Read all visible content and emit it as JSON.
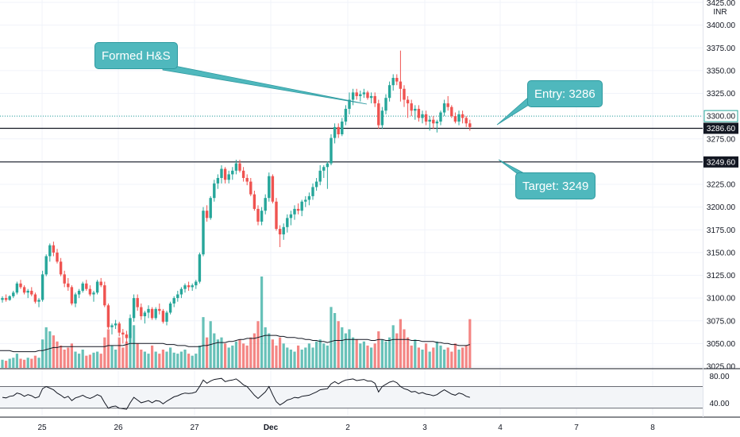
{
  "currency_label": "INR",
  "annotations": [
    {
      "text": "Formed H&S"
    },
    {
      "text": "Entry: 3286"
    },
    {
      "text": "Target: 3249"
    }
  ],
  "colors": {
    "up": "#26a69a",
    "down": "#ef5350",
    "callout": "#4fb8bd",
    "grid": "#f0f3fa"
  },
  "chart_data": [
    {
      "type": "candlestick",
      "y_axis_ticks": [
        3025,
        3050,
        3075,
        3100,
        3125,
        3150,
        3175,
        3200,
        3225,
        3250,
        3275,
        3300,
        3325,
        3350,
        3375,
        3400,
        3425
      ],
      "ylim": [
        3025,
        3425
      ],
      "x_axis_ticks": [
        "25",
        "26",
        "27",
        "Dec",
        "2",
        "3",
        "4",
        "7",
        "8"
      ],
      "price_levels": [
        {
          "value": 3286.6,
          "label": "3286.60"
        },
        {
          "value": 3249.6,
          "label": "3249.60"
        }
      ],
      "current_price": {
        "value": 3300.0,
        "label": "3300.00"
      },
      "ohlc": [
        [
          3098,
          3102,
          3095,
          3100
        ],
        [
          3100,
          3104,
          3096,
          3098
        ],
        [
          3098,
          3103,
          3097,
          3102
        ],
        [
          3102,
          3108,
          3100,
          3106
        ],
        [
          3106,
          3118,
          3104,
          3116
        ],
        [
          3116,
          3120,
          3110,
          3112
        ],
        [
          3112,
          3114,
          3104,
          3106
        ],
        [
          3106,
          3110,
          3100,
          3108
        ],
        [
          3108,
          3112,
          3102,
          3104
        ],
        [
          3104,
          3106,
          3094,
          3096
        ],
        [
          3096,
          3100,
          3090,
          3098
        ],
        [
          3098,
          3130,
          3096,
          3126
        ],
        [
          3126,
          3148,
          3124,
          3146
        ],
        [
          3146,
          3160,
          3140,
          3158
        ],
        [
          3158,
          3162,
          3146,
          3150
        ],
        [
          3150,
          3154,
          3138,
          3140
        ],
        [
          3140,
          3144,
          3124,
          3126
        ],
        [
          3126,
          3130,
          3112,
          3116
        ],
        [
          3116,
          3122,
          3108,
          3112
        ],
        [
          3112,
          3114,
          3092,
          3094
        ],
        [
          3094,
          3106,
          3090,
          3104
        ],
        [
          3104,
          3110,
          3100,
          3108
        ],
        [
          3108,
          3118,
          3106,
          3116
        ],
        [
          3116,
          3120,
          3108,
          3110
        ],
        [
          3110,
          3114,
          3102,
          3104
        ],
        [
          3104,
          3108,
          3096,
          3106
        ],
        [
          3106,
          3120,
          3104,
          3118
        ],
        [
          3118,
          3122,
          3112,
          3114
        ],
        [
          3114,
          3118,
          3090,
          3092
        ],
        [
          3092,
          3094,
          3066,
          3068
        ],
        [
          3068,
          3072,
          3060,
          3070
        ],
        [
          3070,
          3076,
          3066,
          3072
        ],
        [
          3072,
          3074,
          3058,
          3062
        ],
        [
          3062,
          3066,
          3050,
          3060
        ],
        [
          3060,
          3064,
          3050,
          3056
        ],
        [
          3056,
          3082,
          3050,
          3078
        ],
        [
          3078,
          3104,
          3074,
          3100
        ],
        [
          3100,
          3104,
          3086,
          3090
        ],
        [
          3090,
          3094,
          3076,
          3080
        ],
        [
          3080,
          3086,
          3072,
          3084
        ],
        [
          3084,
          3092,
          3078,
          3088
        ],
        [
          3088,
          3090,
          3076,
          3078
        ],
        [
          3078,
          3090,
          3076,
          3088
        ],
        [
          3088,
          3094,
          3082,
          3086
        ],
        [
          3086,
          3088,
          3072,
          3074
        ],
        [
          3074,
          3086,
          3070,
          3084
        ],
        [
          3084,
          3096,
          3082,
          3094
        ],
        [
          3094,
          3102,
          3090,
          3100
        ],
        [
          3100,
          3108,
          3096,
          3104
        ],
        [
          3104,
          3112,
          3100,
          3110
        ],
        [
          3110,
          3116,
          3106,
          3114
        ],
        [
          3114,
          3118,
          3108,
          3112
        ],
        [
          3112,
          3116,
          3108,
          3114
        ],
        [
          3114,
          3120,
          3110,
          3118
        ],
        [
          3118,
          3150,
          3116,
          3148
        ],
        [
          3148,
          3200,
          3146,
          3196
        ],
        [
          3196,
          3202,
          3184,
          3188
        ],
        [
          3188,
          3212,
          3186,
          3210
        ],
        [
          3210,
          3230,
          3206,
          3226
        ],
        [
          3226,
          3236,
          3220,
          3232
        ],
        [
          3232,
          3246,
          3226,
          3242
        ],
        [
          3242,
          3244,
          3226,
          3230
        ],
        [
          3230,
          3240,
          3226,
          3236
        ],
        [
          3236,
          3244,
          3230,
          3240
        ],
        [
          3240,
          3252,
          3236,
          3248
        ],
        [
          3248,
          3252,
          3238,
          3240
        ],
        [
          3240,
          3244,
          3228,
          3232
        ],
        [
          3232,
          3236,
          3224,
          3228
        ],
        [
          3228,
          3232,
          3212,
          3214
        ],
        [
          3214,
          3218,
          3196,
          3198
        ],
        [
          3198,
          3202,
          3180,
          3184
        ],
        [
          3184,
          3200,
          3180,
          3196
        ],
        [
          3196,
          3214,
          3192,
          3210
        ],
        [
          3210,
          3238,
          3206,
          3234
        ],
        [
          3234,
          3236,
          3204,
          3206
        ],
        [
          3206,
          3210,
          3174,
          3176
        ],
        [
          3176,
          3180,
          3156,
          3170
        ],
        [
          3170,
          3182,
          3164,
          3178
        ],
        [
          3178,
          3192,
          3172,
          3188
        ],
        [
          3188,
          3196,
          3180,
          3192
        ],
        [
          3192,
          3202,
          3186,
          3198
        ],
        [
          3198,
          3204,
          3192,
          3196
        ],
        [
          3196,
          3208,
          3190,
          3206
        ],
        [
          3206,
          3212,
          3200,
          3208
        ],
        [
          3208,
          3216,
          3202,
          3212
        ],
        [
          3212,
          3226,
          3208,
          3222
        ],
        [
          3222,
          3232,
          3218,
          3228
        ],
        [
          3228,
          3246,
          3224,
          3240
        ],
        [
          3240,
          3246,
          3232,
          3244
        ],
        [
          3244,
          3250,
          3220,
          3248
        ],
        [
          3248,
          3280,
          3246,
          3276
        ],
        [
          3276,
          3292,
          3270,
          3288
        ],
        [
          3288,
          3292,
          3276,
          3280
        ],
        [
          3280,
          3298,
          3278,
          3294
        ],
        [
          3294,
          3312,
          3290,
          3308
        ],
        [
          3308,
          3326,
          3302,
          3318
        ],
        [
          3318,
          3330,
          3312,
          3326
        ],
        [
          3326,
          3330,
          3318,
          3322
        ],
        [
          3322,
          3328,
          3316,
          3324
        ],
        [
          3324,
          3330,
          3320,
          3326
        ],
        [
          3326,
          3328,
          3318,
          3320
        ],
        [
          3320,
          3326,
          3314,
          3322
        ],
        [
          3322,
          3326,
          3310,
          3314
        ],
        [
          3314,
          3318,
          3286,
          3290
        ],
        [
          3290,
          3310,
          3286,
          3306
        ],
        [
          3306,
          3324,
          3302,
          3320
        ],
        [
          3320,
          3338,
          3316,
          3334
        ],
        [
          3334,
          3346,
          3328,
          3342
        ],
        [
          3342,
          3346,
          3334,
          3338
        ],
        [
          3338,
          3372,
          3316,
          3330
        ],
        [
          3330,
          3334,
          3310,
          3318
        ],
        [
          3318,
          3322,
          3298,
          3314
        ],
        [
          3314,
          3318,
          3300,
          3306
        ],
        [
          3306,
          3312,
          3296,
          3308
        ],
        [
          3308,
          3312,
          3294,
          3298
        ],
        [
          3298,
          3306,
          3292,
          3302
        ],
        [
          3302,
          3306,
          3290,
          3294
        ],
        [
          3294,
          3300,
          3284,
          3296
        ],
        [
          3296,
          3300,
          3286,
          3292
        ],
        [
          3292,
          3296,
          3282,
          3294
        ],
        [
          3294,
          3306,
          3290,
          3304
        ],
        [
          3304,
          3318,
          3300,
          3314
        ],
        [
          3314,
          3322,
          3306,
          3310
        ],
        [
          3310,
          3312,
          3298,
          3300
        ],
        [
          3300,
          3304,
          3292,
          3294
        ],
        [
          3294,
          3306,
          3290,
          3302
        ],
        [
          3302,
          3306,
          3292,
          3298
        ],
        [
          3298,
          3300,
          3288,
          3292
        ],
        [
          3292,
          3296,
          3284,
          3288
        ]
      ],
      "volume": [
        8,
        7,
        9,
        10,
        14,
        9,
        8,
        10,
        9,
        12,
        10,
        28,
        40,
        36,
        32,
        26,
        22,
        18,
        20,
        24,
        16,
        14,
        18,
        12,
        13,
        15,
        16,
        14,
        30,
        38,
        22,
        18,
        30,
        20,
        26,
        34,
        42,
        24,
        18,
        16,
        14,
        22,
        16,
        14,
        18,
        16,
        20,
        15,
        14,
        16,
        18,
        14,
        12,
        14,
        22,
        50,
        30,
        46,
        34,
        28,
        30,
        24,
        20,
        22,
        26,
        28,
        24,
        22,
        30,
        34,
        46,
        90,
        40,
        34,
        28,
        22,
        30,
        24,
        20,
        18,
        16,
        22,
        18,
        20,
        24,
        20,
        26,
        28,
        24,
        22,
        60,
        54,
        46,
        40,
        34,
        38,
        30,
        28,
        24,
        26,
        22,
        20,
        24,
        36,
        28,
        26,
        30,
        42,
        34,
        48,
        38,
        30,
        22,
        28,
        20,
        18,
        24,
        16,
        20,
        26,
        22,
        18,
        20,
        16,
        24,
        18,
        20,
        22,
        48
      ],
      "volume_ma": [
        17,
        17,
        17,
        16,
        16,
        16,
        16,
        16,
        16,
        16,
        17,
        17,
        18,
        19,
        20,
        20,
        21,
        21,
        21,
        21,
        21,
        21,
        21,
        21,
        21,
        21,
        21,
        21,
        21,
        22,
        22,
        22,
        22,
        22,
        23,
        24,
        24,
        24,
        24,
        24,
        24,
        24,
        24,
        24,
        24,
        23,
        23,
        23,
        22,
        22,
        22,
        21,
        21,
        21,
        21,
        22,
        22,
        23,
        24,
        25,
        25,
        25,
        26,
        26,
        27,
        28,
        28,
        29,
        29,
        29,
        30,
        31,
        32,
        32,
        32,
        32,
        31,
        31,
        30,
        30,
        30,
        29,
        29,
        28,
        28,
        27,
        27,
        26,
        26,
        25,
        26,
        27,
        27,
        27,
        28,
        28,
        28,
        28,
        28,
        28,
        28,
        27,
        27,
        28,
        28,
        27,
        27,
        28,
        28,
        28,
        28,
        28,
        27,
        27,
        27,
        26,
        26,
        26,
        26,
        25,
        25,
        24,
        24,
        23,
        23,
        22,
        22,
        22,
        23
      ],
      "indicator": {
        "ticks": [
          80.0,
          40.0
        ],
        "band": [
          70,
          30
        ],
        "ylim": [
          15,
          100
        ],
        "values": [
          50,
          49,
          52,
          53,
          58,
          56,
          52,
          55,
          53,
          49,
          51,
          66,
          70,
          67,
          64,
          58,
          54,
          49,
          52,
          44,
          49,
          51,
          54,
          50,
          48,
          51,
          55,
          52,
          40,
          30,
          33,
          34,
          30,
          29,
          28,
          40,
          50,
          45,
          40,
          42,
          44,
          40,
          44,
          43,
          38,
          43,
          47,
          51,
          53,
          56,
          58,
          57,
          58,
          60,
          70,
          82,
          76,
          80,
          83,
          84,
          85,
          79,
          81,
          82,
          84,
          79,
          73,
          70,
          62,
          54,
          48,
          54,
          60,
          70,
          55,
          42,
          36,
          40,
          45,
          47,
          50,
          49,
          52,
          53,
          54,
          57,
          60,
          64,
          65,
          66,
          75,
          79,
          75,
          79,
          82,
          83,
          84,
          81,
          82,
          83,
          80,
          80,
          76,
          60,
          70,
          74,
          78,
          80,
          77,
          70,
          66,
          64,
          60,
          61,
          57,
          59,
          56,
          55,
          53,
          55,
          60,
          64,
          60,
          56,
          54,
          58,
          56,
          52,
          50
        ]
      }
    }
  ]
}
